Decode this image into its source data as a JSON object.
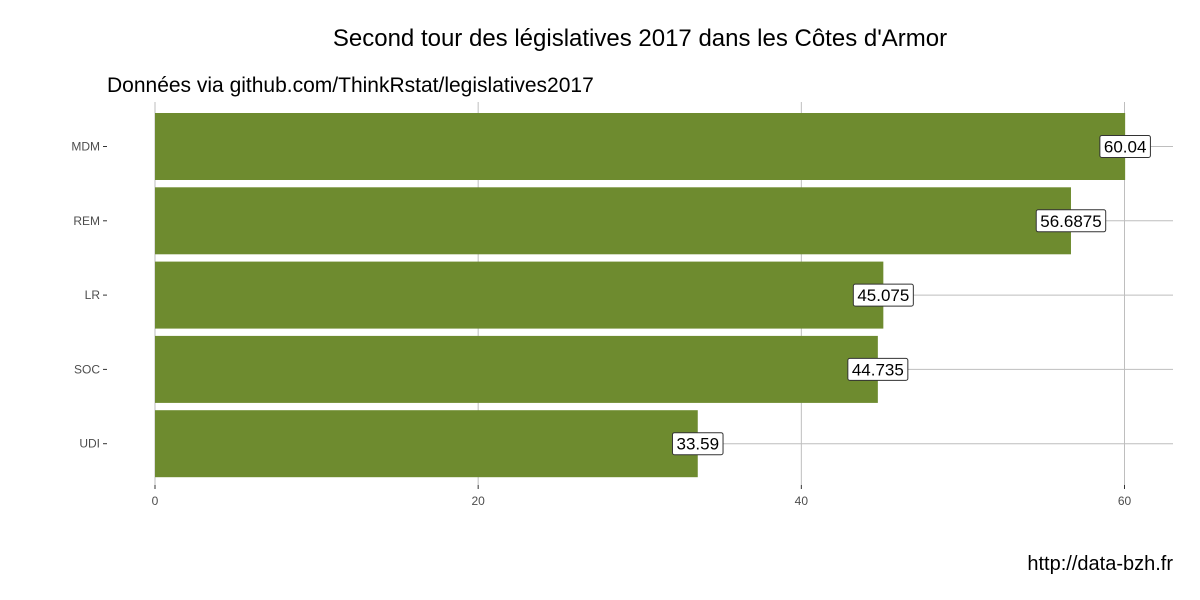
{
  "chart_data": {
    "type": "bar",
    "orientation": "horizontal",
    "title": "Second tour des législatives 2017 dans les Côtes d'Armor",
    "subtitle": "Données via github.com/ThinkRstat/legislatives2017",
    "caption": "http://data-bzh.fr",
    "categories": [
      "MDM",
      "REM",
      "LR",
      "SOC",
      "UDI"
    ],
    "values": [
      60.04,
      56.6875,
      45.075,
      44.735,
      33.59
    ],
    "value_labels": [
      "60.04",
      "56.6875",
      "45.075",
      "44.735",
      "33.59"
    ],
    "x_ticks": [
      0,
      20,
      40,
      60
    ],
    "x_tick_labels": [
      "0",
      "20",
      "40",
      "60"
    ],
    "xlim": [
      0,
      63
    ],
    "xlabel": "",
    "ylabel": "",
    "grid": true,
    "bar_color": "#6e8b2f",
    "grid_color": "#bebebe"
  }
}
